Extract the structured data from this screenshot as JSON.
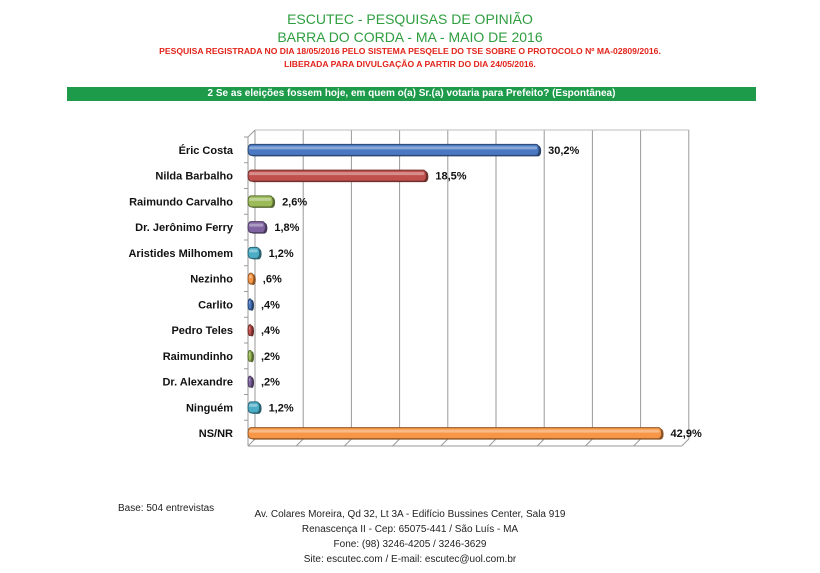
{
  "header": {
    "title": "ESCUTEC - PESQUISAS DE OPINIÃO",
    "subtitle": "BARRA DO CORDA - MA - MAIO DE 2016",
    "registration": "PESQUISA REGISTRADA NO DIA 18/05/2016 PELO SISTEMA PESQELE DO TSE SOBRE O PROTOCOLO Nº MA-02809/2016.",
    "release": "LIBERADA PARA DIVULGAÇÃO A PARTIR DO DIA 24/05/2016."
  },
  "question": "2 Se as eleições fossem hoje, em quem o(a) Sr.(a) votaria para Prefeito? (Espontânea)",
  "chart_data": {
    "type": "bar",
    "orientation": "horizontal",
    "categories": [
      "Éric Costa",
      "Nilda Barbalho",
      "Raimundo Carvalho",
      "Dr. Jerônimo Ferry",
      "Aristides Milhomem",
      "Nezinho",
      "Carlito",
      "Pedro Teles",
      "Raimundinho",
      "Dr. Alexandre",
      "Ninguém",
      "NS/NR"
    ],
    "values": [
      30.2,
      18.5,
      2.6,
      1.8,
      1.2,
      0.6,
      0.4,
      0.4,
      0.2,
      0.2,
      1.2,
      42.9
    ],
    "labels": [
      "30,2%",
      "18,5%",
      "2,6%",
      "1,8%",
      "1,2%",
      ",6%",
      ",4%",
      ",4%",
      ",2%",
      ",2%",
      "1,2%",
      "42,9%"
    ],
    "colors": [
      "#4a78c2",
      "#c0504d",
      "#9bbb59",
      "#8064a2",
      "#4bacc6",
      "#f79646",
      "#4a78c2",
      "#c0504d",
      "#9bbb59",
      "#8064a2",
      "#4bacc6",
      "#f79646"
    ],
    "xlim": [
      0,
      45
    ],
    "grid": true,
    "legend": "none"
  },
  "footer": {
    "base": "Base: 504 entrevistas",
    "address1": "Av. Colares Moreira, Qd 32, Lt 3A - Edifício Bussines Center, Sala 919",
    "address2": "Renascença II - Cep: 65075-441 / São Luís - MA",
    "phone": "Fone: (98) 3246-4205 / 3246-3629",
    "site": "Site: escutec.com / E-mail: escutec@uol.com.br"
  }
}
